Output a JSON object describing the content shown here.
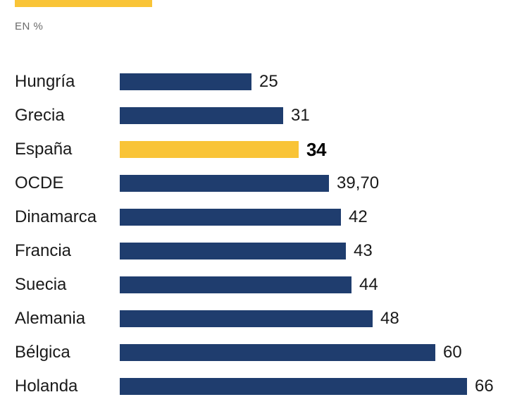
{
  "header": {
    "legend_swatch_color": "#F9C437",
    "unit_label": "EN %"
  },
  "chart_data": {
    "type": "bar",
    "orientation": "horizontal",
    "categories": [
      "Hungría",
      "Grecia",
      "España",
      "OCDE",
      "Dinamarca",
      "Francia",
      "Suecia",
      "Alemania",
      "Bélgica",
      "Holanda"
    ],
    "values": [
      25,
      31,
      34,
      39.7,
      42,
      43,
      44,
      48,
      60,
      66
    ],
    "value_labels": [
      "25",
      "31",
      "34",
      "39,70",
      "42",
      "43",
      "44",
      "48",
      "60",
      "66"
    ],
    "highlight_index": 2,
    "highlight_category": "España",
    "bar_color": "#1F3D6E",
    "highlight_color": "#F9C437",
    "unit": "%",
    "xlim": [
      0,
      66
    ],
    "grid": false,
    "value_labels_position": "right-of-bar",
    "legend_position": "top-left"
  }
}
